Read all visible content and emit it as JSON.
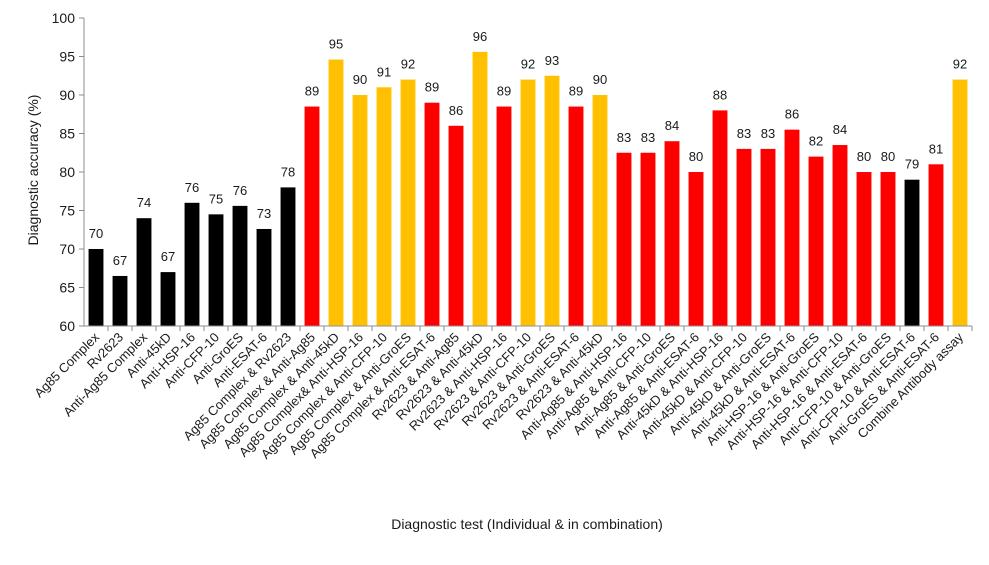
{
  "chart_data": {
    "type": "bar",
    "title": "",
    "xlabel": "Diagnostic test (Individual & in combination)",
    "ylabel": "Diagnostic accuracy (%)",
    "ylim": [
      60,
      100
    ],
    "yticks": [
      60,
      65,
      70,
      75,
      80,
      85,
      90,
      95,
      100
    ],
    "grid": false,
    "colors": {
      "black": "#000000",
      "red": "#ff0000",
      "yellow": "#ffc000"
    },
    "bars": [
      {
        "label": "Ag85 Complex",
        "value": 70,
        "value_label": "70",
        "color": "black"
      },
      {
        "label": "Rv2623",
        "value": 66.5,
        "value_label": "67",
        "color": "black"
      },
      {
        "label": "Anti-Ag85 Complex",
        "value": 74,
        "value_label": "74",
        "color": "black"
      },
      {
        "label": "Anti-45kD",
        "value": 67,
        "value_label": "67",
        "color": "black"
      },
      {
        "label": "Anti-HSP-16",
        "value": 76,
        "value_label": "76",
        "color": "black"
      },
      {
        "label": "Anti-CFP-10",
        "value": 74.5,
        "value_label": "75",
        "color": "black"
      },
      {
        "label": "Anti-GroES",
        "value": 75.6,
        "value_label": "76",
        "color": "black"
      },
      {
        "label": "Anti-ESAT-6",
        "value": 72.6,
        "value_label": "73",
        "color": "black"
      },
      {
        "label": "Ag85 Complex & Rv2623",
        "value": 78,
        "value_label": "78",
        "color": "black"
      },
      {
        "label": "Ag85 Complex & Anti-Ag85",
        "value": 88.5,
        "value_label": "89",
        "color": "red"
      },
      {
        "label": "Ag85 Complex & Anti-45kD",
        "value": 94.6,
        "value_label": "95",
        "color": "yellow"
      },
      {
        "label": "Ag85 Complex& Anti-HSP-16",
        "value": 90,
        "value_label": "90",
        "color": "yellow"
      },
      {
        "label": "Ag85 Complex & Anti-CFP-10",
        "value": 91,
        "value_label": "91",
        "color": "yellow"
      },
      {
        "label": "Ag85 Complex & Anti-GroES",
        "value": 92,
        "value_label": "92",
        "color": "yellow"
      },
      {
        "label": "Ag85 Complex & Anti-ESAT-6",
        "value": 89,
        "value_label": "89",
        "color": "red"
      },
      {
        "label": "Rv2623 & Anti-Ag85",
        "value": 86,
        "value_label": "86",
        "color": "red"
      },
      {
        "label": "Rv2623 & Anti-45kD",
        "value": 95.6,
        "value_label": "96",
        "color": "yellow"
      },
      {
        "label": "Rv2623 & Anti-HSP-16",
        "value": 88.5,
        "value_label": "89",
        "color": "red"
      },
      {
        "label": "Rv2623 & Anti-CFP-10",
        "value": 92,
        "value_label": "92",
        "color": "yellow"
      },
      {
        "label": "Rv2623 & Anti-GroES",
        "value": 92.5,
        "value_label": "93",
        "color": "yellow"
      },
      {
        "label": "Rv2623 & Anti-ESAT-6",
        "value": 88.5,
        "value_label": "89",
        "color": "red"
      },
      {
        "label": "Rv2623 & Anti-45kD",
        "value": 90,
        "value_label": "90",
        "color": "yellow"
      },
      {
        "label": "Anti-Ag85 & Anti-HSP-16",
        "value": 82.5,
        "value_label": "83",
        "color": "red"
      },
      {
        "label": "Anti-Ag85 & Anti-CFP-10",
        "value": 82.5,
        "value_label": "83",
        "color": "red"
      },
      {
        "label": "Anti-Ag85 & Anti-GroES",
        "value": 84,
        "value_label": "84",
        "color": "red"
      },
      {
        "label": "Anti-Ag85 & Anti-ESAT-6",
        "value": 80,
        "value_label": "80",
        "color": "red"
      },
      {
        "label": "Anti-45kD & Anti-HSP-16",
        "value": 88,
        "value_label": "88",
        "color": "red"
      },
      {
        "label": "Anti-45kD & Anti-CFP-10",
        "value": 83,
        "value_label": "83",
        "color": "red"
      },
      {
        "label": "Anti-45kD & Anti-GroES",
        "value": 83,
        "value_label": "83",
        "color": "red"
      },
      {
        "label": "Anti-45kD & Anti-ESAT-6",
        "value": 85.5,
        "value_label": "86",
        "color": "red"
      },
      {
        "label": "Anti-HSP-16 & Anti-GroES",
        "value": 82,
        "value_label": "82",
        "color": "red"
      },
      {
        "label": "Anti-HSP-16 & Anti-CFP-10",
        "value": 83.5,
        "value_label": "84",
        "color": "red"
      },
      {
        "label": "Anti-HSP-16 & Anti-ESAT-6",
        "value": 80,
        "value_label": "80",
        "color": "red"
      },
      {
        "label": "Anti-CFP-10 & Anti-GroES",
        "value": 80,
        "value_label": "80",
        "color": "red"
      },
      {
        "label": "Anti-CFP-10 & Anti-ESAT-6",
        "value": 79,
        "value_label": "79",
        "color": "black"
      },
      {
        "label": "Anti-GroES & Anti-ESAT-6",
        "value": 81,
        "value_label": "81",
        "color": "red"
      },
      {
        "label": "Combine Antibody assay",
        "value": 92,
        "value_label": "92",
        "color": "yellow"
      }
    ]
  }
}
